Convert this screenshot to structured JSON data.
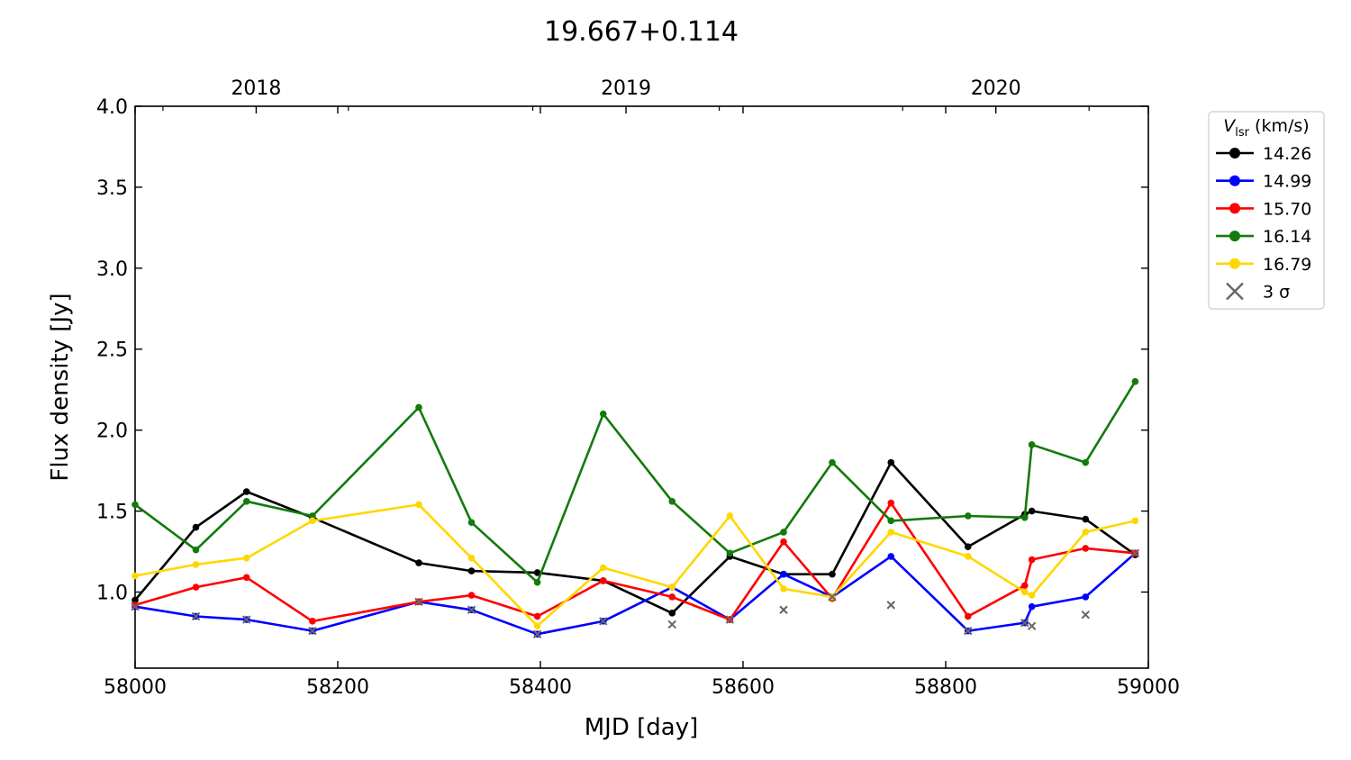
{
  "chart_data": {
    "type": "line",
    "title": "19.667+0.114",
    "xlabel": "MJD [day]",
    "ylabel": "Flux density [Jy]",
    "xlim": [
      58000,
      59000
    ],
    "ylim": [
      0.53,
      4.0
    ],
    "xticks": [
      58000,
      58200,
      58400,
      58600,
      58800,
      59000
    ],
    "yticks": [
      1.0,
      1.5,
      2.0,
      2.5,
      3.0,
      3.5,
      4.0
    ],
    "top_axis": {
      "labels": [
        "2018",
        "2019",
        "2020"
      ],
      "label_positions_mjd": [
        58119.5,
        58484.5,
        58849.5
      ],
      "minor_ticks_mjd": [
        58027.5,
        58210.5,
        58392.5,
        58576.5,
        58757.5,
        58941.5
      ]
    },
    "legend": {
      "title_symbol": "V",
      "title_subscript": "lsr",
      "title_unit": " (km/s)",
      "placement": "outside-right-top",
      "sigma_label": "3 σ"
    },
    "series": [
      {
        "name": "14.26",
        "color": "#000000",
        "x": [
          58000,
          58060,
          58110,
          58175,
          58280,
          58332,
          58397,
          58462,
          58530,
          58587,
          58640,
          58688,
          58746,
          58822,
          58878,
          58885,
          58938,
          58987
        ],
        "y": [
          0.95,
          1.4,
          1.62,
          1.46,
          1.18,
          1.13,
          1.12,
          1.07,
          0.87,
          1.22,
          1.11,
          1.11,
          1.8,
          1.28,
          1.48,
          1.5,
          1.45,
          1.23
        ]
      },
      {
        "name": "14.99",
        "color": "#0000ff",
        "x": [
          58000,
          58060,
          58110,
          58175,
          58280,
          58332,
          58397,
          58462,
          58530,
          58587,
          58640,
          58688,
          58746,
          58822,
          58878,
          58885,
          58938,
          58987
        ],
        "y": [
          0.91,
          0.85,
          0.83,
          0.76,
          0.94,
          0.89,
          0.74,
          0.82,
          1.03,
          0.83,
          1.11,
          0.97,
          1.22,
          0.76,
          0.81,
          0.91,
          0.97,
          1.24
        ]
      },
      {
        "name": "15.70",
        "color": "#ff0000",
        "x": [
          58000,
          58060,
          58110,
          58175,
          58280,
          58332,
          58397,
          58462,
          58530,
          58587,
          58640,
          58688,
          58746,
          58822,
          58878,
          58885,
          58938,
          58987
        ],
        "y": [
          0.92,
          1.03,
          1.09,
          0.82,
          0.94,
          0.98,
          0.85,
          1.07,
          0.97,
          0.83,
          1.31,
          0.96,
          1.55,
          0.85,
          1.04,
          1.2,
          1.27,
          1.24
        ]
      },
      {
        "name": "16.14",
        "color": "#137a0b",
        "x": [
          58000,
          58060,
          58110,
          58175,
          58280,
          58332,
          58397,
          58462,
          58530,
          58587,
          58640,
          58688,
          58746,
          58822,
          58878,
          58885,
          58938,
          58987
        ],
        "y": [
          1.54,
          1.26,
          1.56,
          1.47,
          2.14,
          1.43,
          1.06,
          2.1,
          1.56,
          1.24,
          1.37,
          1.8,
          1.44,
          1.47,
          1.46,
          1.91,
          1.8,
          2.3
        ]
      },
      {
        "name": "16.79",
        "color": "#ffd700",
        "x": [
          58000,
          58060,
          58110,
          58175,
          58280,
          58332,
          58397,
          58462,
          58530,
          58587,
          58640,
          58688,
          58746,
          58822,
          58878,
          58885,
          58938,
          58987
        ],
        "y": [
          1.1,
          1.17,
          1.21,
          1.44,
          1.54,
          1.21,
          0.79,
          1.15,
          1.03,
          1.47,
          1.02,
          0.97,
          1.37,
          1.22,
          1.0,
          0.98,
          1.37,
          1.44
        ]
      }
    ],
    "sigma3": {
      "name": "3 σ",
      "color": "#666666",
      "x": [
        58000,
        58060,
        58110,
        58175,
        58280,
        58332,
        58397,
        58462,
        58530,
        58587,
        58640,
        58688,
        58746,
        58822,
        58878,
        58885,
        58938,
        58987
      ],
      "y": [
        0.91,
        0.85,
        0.83,
        0.76,
        0.94,
        0.89,
        0.74,
        0.82,
        0.8,
        0.83,
        0.89,
        0.97,
        0.92,
        0.76,
        0.81,
        0.79,
        0.86,
        1.24
      ]
    }
  }
}
